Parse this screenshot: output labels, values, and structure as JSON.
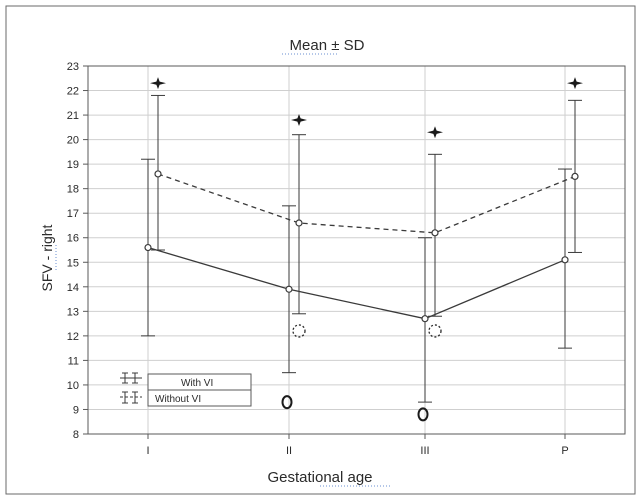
{
  "chart_data": {
    "type": "line",
    "title": "Mean ± SD",
    "xlabel": "Gestational age",
    "ylabel": "SFV - right",
    "categories": [
      "I",
      "II",
      "III",
      "P"
    ],
    "ylim": [
      8,
      23
    ],
    "yticks": [
      8,
      9,
      10,
      11,
      12,
      13,
      14,
      15,
      16,
      17,
      18,
      19,
      20,
      21,
      22,
      23
    ],
    "grid": true,
    "legend_position": "bottom-left",
    "series": [
      {
        "name": "With VI",
        "line_style": "solid",
        "mean": [
          15.6,
          13.9,
          12.7,
          15.1
        ],
        "upper": [
          19.2,
          17.3,
          16.0,
          18.8
        ],
        "lower": [
          12.0,
          10.5,
          9.3,
          11.5
        ]
      },
      {
        "name": "Without VI",
        "line_style": "dashed",
        "mean": [
          18.6,
          16.6,
          16.2,
          18.5
        ],
        "upper": [
          21.8,
          20.2,
          19.4,
          21.6
        ],
        "lower": [
          15.5,
          12.9,
          12.8,
          15.4
        ]
      }
    ],
    "annotations": [
      {
        "symbol": "star",
        "category": "I",
        "y": 22.3
      },
      {
        "symbol": "star",
        "category": "II",
        "y": 20.8
      },
      {
        "symbol": "star",
        "category": "III",
        "y": 20.3
      },
      {
        "symbol": "star",
        "category": "P",
        "y": 22.3
      },
      {
        "symbol": "dotted-circle",
        "category": "II",
        "y": 12.2
      },
      {
        "symbol": "dotted-circle",
        "category": "III",
        "y": 12.2
      },
      {
        "symbol": "open-circle",
        "category": "II",
        "y": 9.3
      },
      {
        "symbol": "open-circle",
        "category": "III",
        "y": 8.8
      }
    ],
    "colors": {
      "line": "#3a3a3a",
      "grid": "#cfcfcf",
      "frame": "#5a5a5a"
    }
  }
}
